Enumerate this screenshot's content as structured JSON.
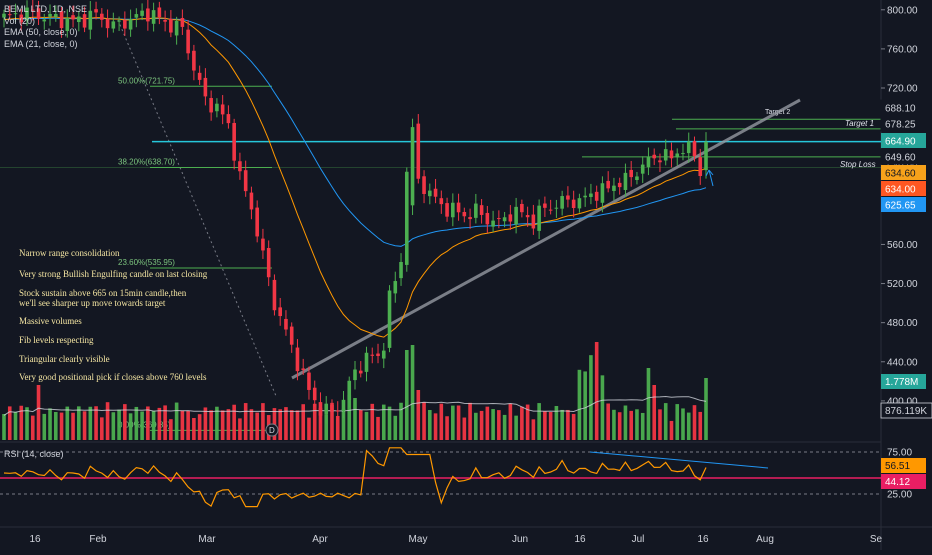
{
  "legend": {
    "title": "BEML LTD, 1D, NSE",
    "vol": "Vol (20)",
    "ema50": "EMA (50, close, 0)",
    "ema21": "EMA (21, close, 0)"
  },
  "annotations": [
    "Narrow range consolidation",
    "Very strong Bullish Engulfing candle on last closing",
    "Stock sustain above 665 on 15min candle,then",
    "we'll see sharper up move towards target",
    "Massive volumes",
    "Fib levels respecting",
    "Triangular clearly visible",
    "Very good positional pick if closes above 760 levels"
  ],
  "chart_data": {
    "type": "candlestick",
    "symbol": "BEML LTD",
    "interval": "1D",
    "exchange": "NSE",
    "ylim": [
      360,
      810
    ],
    "y_ticks": [
      "800.00",
      "760.00",
      "720.00",
      "680.00",
      "640.00",
      "600.00",
      "560.00",
      "520.00",
      "480.00",
      "440.00",
      "400.00"
    ],
    "x_ticks": [
      "16",
      "Feb",
      "Mar",
      "Apr",
      "May",
      "Jun",
      "16",
      "Jul",
      "16",
      "Aug",
      "Se"
    ],
    "key_closes": [
      {
        "period": "Feb-early",
        "close": 790
      },
      {
        "period": "Mar-start",
        "close": 700
      },
      {
        "period": "Mar-end",
        "close": 390
      },
      {
        "period": "Apr-early",
        "close": 520
      },
      {
        "period": "Apr-spike-high",
        "close": 755
      },
      {
        "period": "May",
        "close": 585
      },
      {
        "period": "Jun",
        "close": 610
      },
      {
        "period": "Jun-16",
        "close": 625
      },
      {
        "period": "Jul",
        "close": 660
      },
      {
        "period": "Jul-16-last",
        "close": 665
      }
    ],
    "fib_levels": [
      {
        "label": "50.00%(721.75)",
        "value": 721.75
      },
      {
        "label": "38.20%(638.70)",
        "value": 638.7
      },
      {
        "label": "23.60%(535.95)",
        "value": 535.95
      },
      {
        "label": "0.00%(369.85)",
        "value": 369.85
      }
    ],
    "horizontal_levels": [
      {
        "label": "Target 2",
        "value": 688.1
      },
      {
        "label": "Target 1",
        "value": 678.25
      },
      {
        "label": "Stop Loss",
        "value": 649.6
      }
    ],
    "price_labels": [
      {
        "text": "688.10",
        "value": 688.1,
        "color": "#131722"
      },
      {
        "text": "678.25",
        "value": 678.25,
        "color": "#131722"
      },
      {
        "text": "664.90",
        "value": 664.9,
        "color": "#26a69a"
      },
      {
        "text": "649.60",
        "value": 649.6,
        "color": "#131722"
      },
      {
        "text": "634.60",
        "value": 634.6,
        "color": "#f7a21b"
      },
      {
        "text": "634.00",
        "value": 634.0,
        "color": "#ff5722"
      },
      {
        "text": "625.65",
        "value": 625.65,
        "color": "#2196f3"
      }
    ],
    "volume": {
      "label": "1.778M",
      "avg_label": "876.119K"
    },
    "rsi": {
      "title": "RSI (14, close)",
      "upper": "75.00",
      "lower": "25.00",
      "value": "56.51",
      "ma": "44.12"
    },
    "colors": {
      "up": "#4caf50",
      "down": "#f23645",
      "ema50": "#2196f3",
      "ema21": "#ff9800",
      "rsi": "#ff9800",
      "fib": "#4caf50",
      "level": "#4caf50",
      "hline": "#26c6da",
      "trend": "#787b86"
    }
  }
}
